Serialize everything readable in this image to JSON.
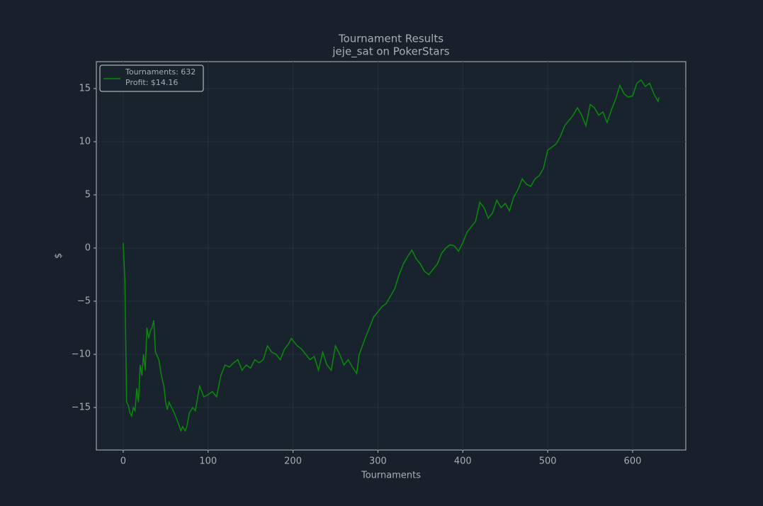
{
  "chart_data": {
    "type": "line",
    "title": "Tournament Results",
    "subtitle": "jeje_sat on PokerStars",
    "x_label": "Tournaments",
    "y_label": "$",
    "xlim": [
      -31.6,
      662.6
    ],
    "ylim": [
      -19,
      17.53
    ],
    "xticks": [
      0,
      100,
      200,
      300,
      400,
      500,
      600
    ],
    "yticks": [
      {
        "value": -15,
        "label": "−15"
      },
      {
        "value": -10,
        "label": "−10"
      },
      {
        "value": -5,
        "label": "−5"
      },
      0,
      5,
      10,
      15
    ],
    "grid": true,
    "legend_position": "upper left",
    "profit_label": "Profit: $14.16",
    "x": [
      0,
      2,
      4,
      6,
      8,
      10,
      12,
      14,
      16,
      18,
      20,
      22,
      24,
      26,
      28,
      30,
      32,
      34,
      36,
      38,
      42,
      45,
      48,
      50,
      52,
      54,
      57,
      60,
      65,
      68,
      70,
      73,
      75,
      78,
      82,
      85,
      90,
      95,
      100,
      105,
      110,
      115,
      120,
      125,
      130,
      135,
      140,
      145,
      150,
      155,
      160,
      165,
      170,
      175,
      180,
      185,
      190,
      195,
      198,
      205,
      210,
      215,
      220,
      225,
      230,
      235,
      240,
      245,
      250,
      255,
      260,
      265,
      270,
      275,
      278,
      285,
      290,
      295,
      300,
      305,
      310,
      315,
      320,
      325,
      330,
      335,
      340,
      345,
      350,
      355,
      360,
      365,
      370,
      375,
      380,
      385,
      390,
      395,
      400,
      405,
      410,
      415,
      420,
      425,
      430,
      435,
      440,
      445,
      450,
      455,
      460,
      465,
      470,
      475,
      480,
      485,
      490,
      495,
      500,
      505,
      510,
      515,
      520,
      525,
      530,
      535,
      540,
      545,
      550,
      555,
      560,
      565,
      570,
      575,
      580,
      585,
      590,
      595,
      600,
      605,
      610,
      615,
      620,
      625,
      630,
      631
    ],
    "series": [
      {
        "name": "Tournaments: 632",
        "color": "#0a8a0a",
        "values": [
          0.5,
          -3,
          -14.5,
          -14.8,
          -15.5,
          -15.8,
          -15.0,
          -15.3,
          -13.2,
          -14.5,
          -11,
          -12,
          -10,
          -11.5,
          -7.5,
          -8.5,
          -7.8,
          -7.5,
          -6.8,
          -9.8,
          -10.5,
          -12,
          -13,
          -14.5,
          -15.2,
          -14.5,
          -15,
          -15.5,
          -16.5,
          -17.2,
          -16.8,
          -17.2,
          -16.8,
          -15.5,
          -15,
          -15.3,
          -13,
          -14,
          -13.8,
          -13.5,
          -14,
          -12,
          -11,
          -11.2,
          -10.8,
          -10.5,
          -11.5,
          -11,
          -11.3,
          -10.5,
          -10.8,
          -10.5,
          -9.2,
          -9.8,
          -10,
          -10.5,
          -9.5,
          -9,
          -8.5,
          -9.2,
          -9.5,
          -10,
          -10.5,
          -10.2,
          -11.5,
          -9.8,
          -11,
          -11.5,
          -9.2,
          -10,
          -11,
          -10.5,
          -11.2,
          -11.8,
          -10,
          -8.5,
          -7.5,
          -6.5,
          -6,
          -5.5,
          -5.2,
          -4.5,
          -3.8,
          -2.5,
          -1.5,
          -0.8,
          -0.2,
          -1,
          -1.5,
          -2.2,
          -2.5,
          -2,
          -1.5,
          -0.5,
          0,
          0.3,
          0.2,
          -0.3,
          0.5,
          1.5,
          2,
          2.5,
          4.3,
          3.8,
          2.8,
          3.3,
          4.5,
          3.8,
          4.2,
          3.5,
          4.8,
          5.5,
          6.5,
          6,
          5.8,
          6.5,
          6.8,
          7.5,
          9.2,
          9.5,
          9.8,
          10.5,
          11.5,
          12,
          12.5,
          13.2,
          12.5,
          11.5,
          13.5,
          13.2,
          12.5,
          12.8,
          11.8,
          13,
          14,
          15.3,
          14.5,
          14.2,
          14.3,
          15.5,
          15.8,
          15.2,
          15.5,
          14.5,
          13.8,
          14.16
        ]
      }
    ]
  }
}
